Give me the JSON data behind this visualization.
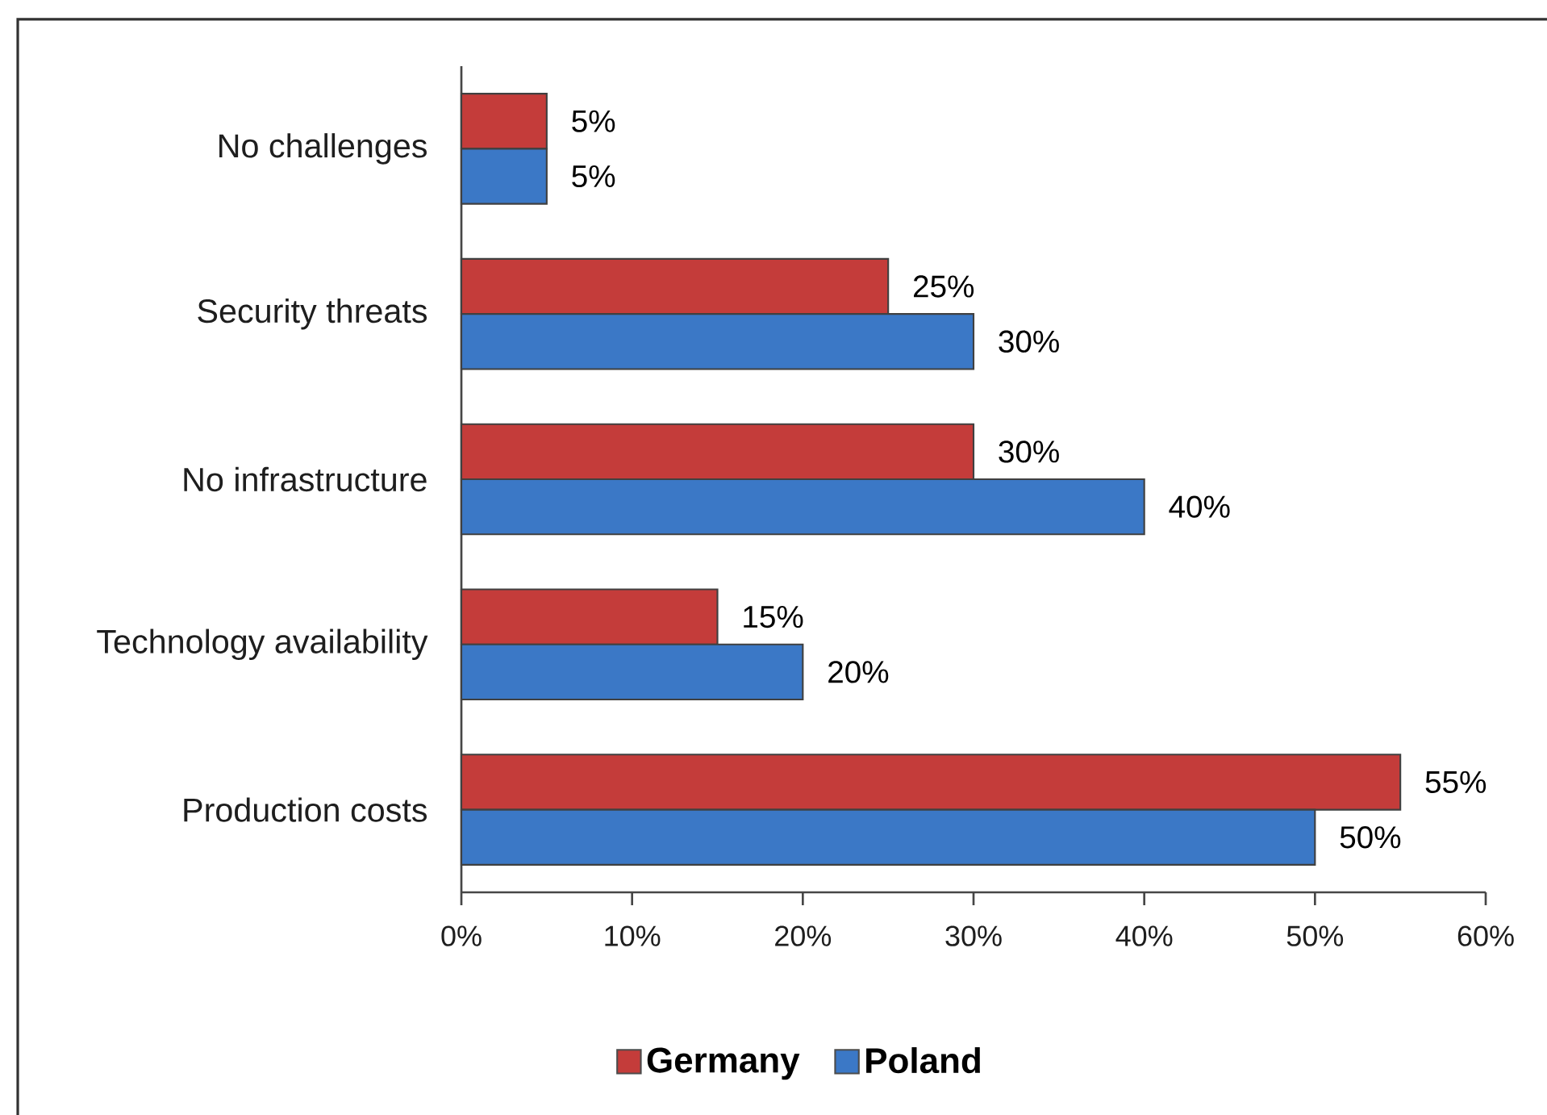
{
  "chart_data": {
    "type": "bar",
    "orientation": "horizontal",
    "categories": [
      "No challenges",
      "Security threats",
      "No infrastructure",
      "Technology availability",
      "Production costs"
    ],
    "series": [
      {
        "name": "Germany",
        "color": "#c43c3a",
        "values": [
          5,
          25,
          30,
          15,
          55
        ],
        "value_labels": [
          "5%",
          "25%",
          "30%",
          "15%",
          "55%"
        ]
      },
      {
        "name": "Poland",
        "color": "#3b78c6",
        "values": [
          5,
          30,
          40,
          20,
          50
        ],
        "value_labels": [
          "5%",
          "30%",
          "40%",
          "20%",
          "50%"
        ]
      }
    ],
    "xlim": [
      0,
      60
    ],
    "xticks": [
      {
        "value": 0,
        "label": "0%"
      },
      {
        "value": 10,
        "label": "10%"
      },
      {
        "value": 20,
        "label": "20%"
      },
      {
        "value": 30,
        "label": "30%"
      },
      {
        "value": 40,
        "label": "40%"
      },
      {
        "value": 50,
        "label": "50%"
      },
      {
        "value": 60,
        "label": "60%"
      }
    ],
    "legend": "bottom"
  }
}
